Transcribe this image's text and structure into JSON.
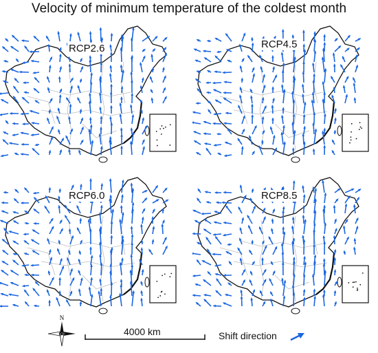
{
  "title": "Velocity of minimum temperature of the coldest month",
  "panels": [
    {
      "label": "RCP2.6"
    },
    {
      "label": "RCP4.5"
    },
    {
      "label": "RCP6.0"
    },
    {
      "label": "RCP8.5"
    }
  ],
  "compass": {
    "north_label": "N"
  },
  "scale_bar": {
    "label": "4000 km"
  },
  "legend": {
    "label": "Shift direction",
    "arrow_color": "#1a66e0"
  },
  "colors": {
    "arrow": "#1a66e0",
    "border": "#111111",
    "province": "#bdbdbd"
  }
}
